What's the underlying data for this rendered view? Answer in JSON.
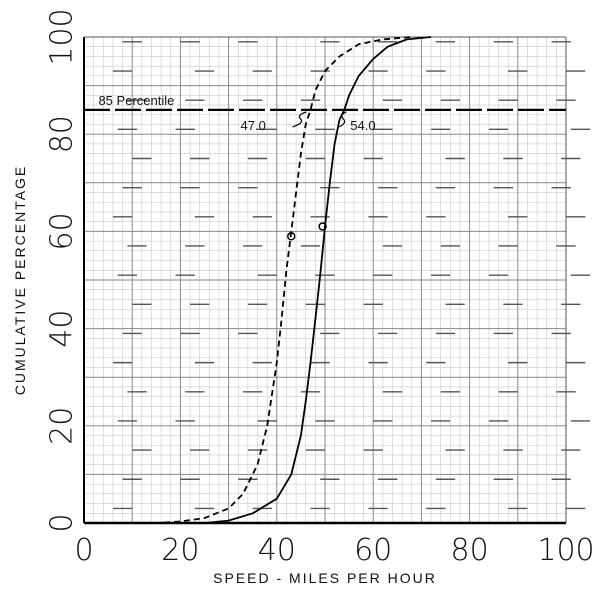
{
  "chart_data": {
    "type": "line",
    "title": "",
    "xlabel": "SPEED - MILES PER HOUR",
    "ylabel": "CUMULATIVE  PERCENTAGE",
    "xlim": [
      0,
      100
    ],
    "ylim": [
      0,
      100
    ],
    "x_ticks": [
      "0",
      "20",
      "40",
      "60",
      "80",
      "100"
    ],
    "y_ticks": [
      "0",
      "20",
      "40",
      "60",
      "80",
      "100"
    ],
    "grid": true,
    "series": [
      {
        "style": "dashed",
        "points": [
          [
            0,
            0
          ],
          [
            15,
            0
          ],
          [
            20,
            0.3
          ],
          [
            25,
            1
          ],
          [
            30,
            3
          ],
          [
            33,
            6
          ],
          [
            36,
            12
          ],
          [
            38,
            20
          ],
          [
            40,
            33
          ],
          [
            41,
            42
          ],
          [
            42,
            52
          ],
          [
            43,
            60
          ],
          [
            44,
            68
          ],
          [
            45,
            76
          ],
          [
            46,
            82
          ],
          [
            47,
            85
          ],
          [
            48,
            89
          ],
          [
            50,
            93
          ],
          [
            53,
            96
          ],
          [
            57,
            98.5
          ],
          [
            62,
            99.5
          ],
          [
            68,
            100
          ]
        ],
        "marker": {
          "x": 43,
          "y": 59
        }
      },
      {
        "style": "solid",
        "points": [
          [
            0,
            0
          ],
          [
            25,
            0
          ],
          [
            30,
            0.5
          ],
          [
            35,
            2
          ],
          [
            40,
            5
          ],
          [
            43,
            10
          ],
          [
            45,
            18
          ],
          [
            46,
            25
          ],
          [
            47,
            33
          ],
          [
            48,
            42
          ],
          [
            49,
            51
          ],
          [
            50,
            61
          ],
          [
            51,
            70
          ],
          [
            52,
            78
          ],
          [
            53,
            83
          ],
          [
            54,
            85
          ],
          [
            55,
            88
          ],
          [
            57,
            92
          ],
          [
            60,
            95.5
          ],
          [
            63,
            98
          ],
          [
            67,
            99.5
          ],
          [
            72,
            100
          ]
        ],
        "marker": {
          "x": 49.5,
          "y": 61
        }
      }
    ],
    "reference_line": {
      "label": "85 Percentile",
      "y": 85
    },
    "annotations": [
      {
        "text": "47.0",
        "x": 47.0,
        "y": 85
      },
      {
        "text": "54.0",
        "x": 54.0,
        "y": 85
      }
    ]
  }
}
